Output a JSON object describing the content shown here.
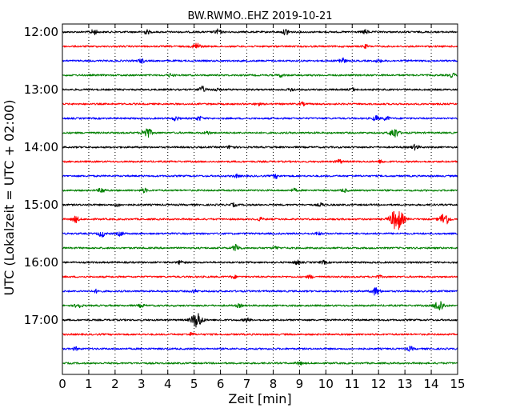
{
  "chart_data": {
    "type": "line",
    "title": "BW.RWMO..EHZ 2019-10-21",
    "xlabel": "Zeit  [min]",
    "ylabel": "UTC (Lokalzeit = UTC + 02:00)",
    "xlim": [
      0,
      15
    ],
    "x_ticks": [
      "0",
      "1",
      "2",
      "3",
      "4",
      "5",
      "6",
      "7",
      "8",
      "9",
      "10",
      "11",
      "12",
      "13",
      "14",
      "15"
    ],
    "y_ticks": [
      "12:00",
      "13:00",
      "14:00",
      "15:00",
      "16:00",
      "17:00"
    ],
    "grid": "vertical dotted lines at each minute",
    "colors": [
      "#000000",
      "#ff0000",
      "#0000ff",
      "#008000"
    ],
    "traces": [
      {
        "start": "12:00",
        "events": [
          [
            1.2,
            0.5
          ],
          [
            3.2,
            0.4
          ],
          [
            5.9,
            0.5
          ],
          [
            8.5,
            0.6
          ],
          [
            11.5,
            0.4
          ]
        ]
      },
      {
        "start": "12:15",
        "events": [
          [
            5.1,
            0.7
          ],
          [
            11.5,
            0.3
          ]
        ]
      },
      {
        "start": "12:30",
        "events": [
          [
            3.0,
            0.4
          ],
          [
            10.6,
            0.6
          ],
          [
            12.0,
            0.3
          ]
        ]
      },
      {
        "start": "12:45",
        "events": [
          [
            4.1,
            0.3
          ],
          [
            8.3,
            0.3
          ],
          [
            14.8,
            0.4
          ]
        ]
      },
      {
        "start": "13:00",
        "events": [
          [
            5.3,
            0.6
          ],
          [
            5.8,
            0.3
          ],
          [
            8.7,
            0.3
          ],
          [
            11.0,
            0.3
          ]
        ]
      },
      {
        "start": "13:15",
        "events": [
          [
            7.4,
            0.3
          ],
          [
            9.1,
            0.3
          ]
        ]
      },
      {
        "start": "13:30",
        "events": [
          [
            4.3,
            0.4
          ],
          [
            5.2,
            0.4
          ],
          [
            11.9,
            0.5
          ],
          [
            12.3,
            0.4
          ]
        ]
      },
      {
        "start": "13:45",
        "events": [
          [
            3.2,
            1.1
          ],
          [
            12.6,
            1.0
          ],
          [
            5.5,
            0.3
          ]
        ]
      },
      {
        "start": "14:00",
        "events": [
          [
            6.4,
            0.4
          ],
          [
            13.4,
            0.5
          ]
        ]
      },
      {
        "start": "14:15",
        "events": [
          [
            10.5,
            0.4
          ],
          [
            12.1,
            0.3
          ]
        ]
      },
      {
        "start": "14:30",
        "events": [
          [
            6.6,
            0.3
          ],
          [
            8.1,
            0.4
          ]
        ]
      },
      {
        "start": "14:45",
        "events": [
          [
            1.5,
            0.5
          ],
          [
            3.1,
            0.4
          ],
          [
            8.8,
            0.3
          ],
          [
            10.7,
            0.3
          ]
        ]
      },
      {
        "start": "15:00",
        "events": [
          [
            2.1,
            0.3
          ],
          [
            6.5,
            0.3
          ],
          [
            9.8,
            0.3
          ]
        ]
      },
      {
        "start": "15:15",
        "events": [
          [
            0.5,
            0.6
          ],
          [
            12.7,
            2.2
          ],
          [
            14.5,
            1.3
          ],
          [
            7.5,
            0.3
          ]
        ]
      },
      {
        "start": "15:30",
        "events": [
          [
            1.5,
            0.6
          ],
          [
            2.2,
            0.4
          ],
          [
            9.7,
            0.3
          ]
        ]
      },
      {
        "start": "15:45",
        "events": [
          [
            6.6,
            0.7
          ],
          [
            8.1,
            0.3
          ]
        ]
      },
      {
        "start": "16:00",
        "events": [
          [
            4.5,
            0.4
          ],
          [
            8.9,
            0.4
          ],
          [
            9.9,
            0.3
          ]
        ]
      },
      {
        "start": "16:15",
        "events": [
          [
            6.5,
            0.3
          ],
          [
            9.4,
            0.3
          ],
          [
            12.0,
            0.3
          ]
        ]
      },
      {
        "start": "16:30",
        "events": [
          [
            1.3,
            0.3
          ],
          [
            11.9,
            0.8
          ],
          [
            5.0,
            0.3
          ]
        ]
      },
      {
        "start": "16:45",
        "events": [
          [
            0.6,
            0.5
          ],
          [
            3.0,
            0.3
          ],
          [
            14.3,
            1.2
          ],
          [
            6.7,
            0.3
          ]
        ]
      },
      {
        "start": "17:00",
        "events": [
          [
            5.1,
            1.6
          ],
          [
            7.0,
            0.4
          ]
        ]
      },
      {
        "start": "17:15",
        "events": [
          [
            4.9,
            0.3
          ]
        ]
      },
      {
        "start": "17:30",
        "events": [
          [
            13.2,
            0.4
          ],
          [
            0.5,
            0.3
          ]
        ]
      },
      {
        "start": "17:45",
        "events": [
          [
            9.0,
            0.3
          ]
        ]
      }
    ]
  }
}
